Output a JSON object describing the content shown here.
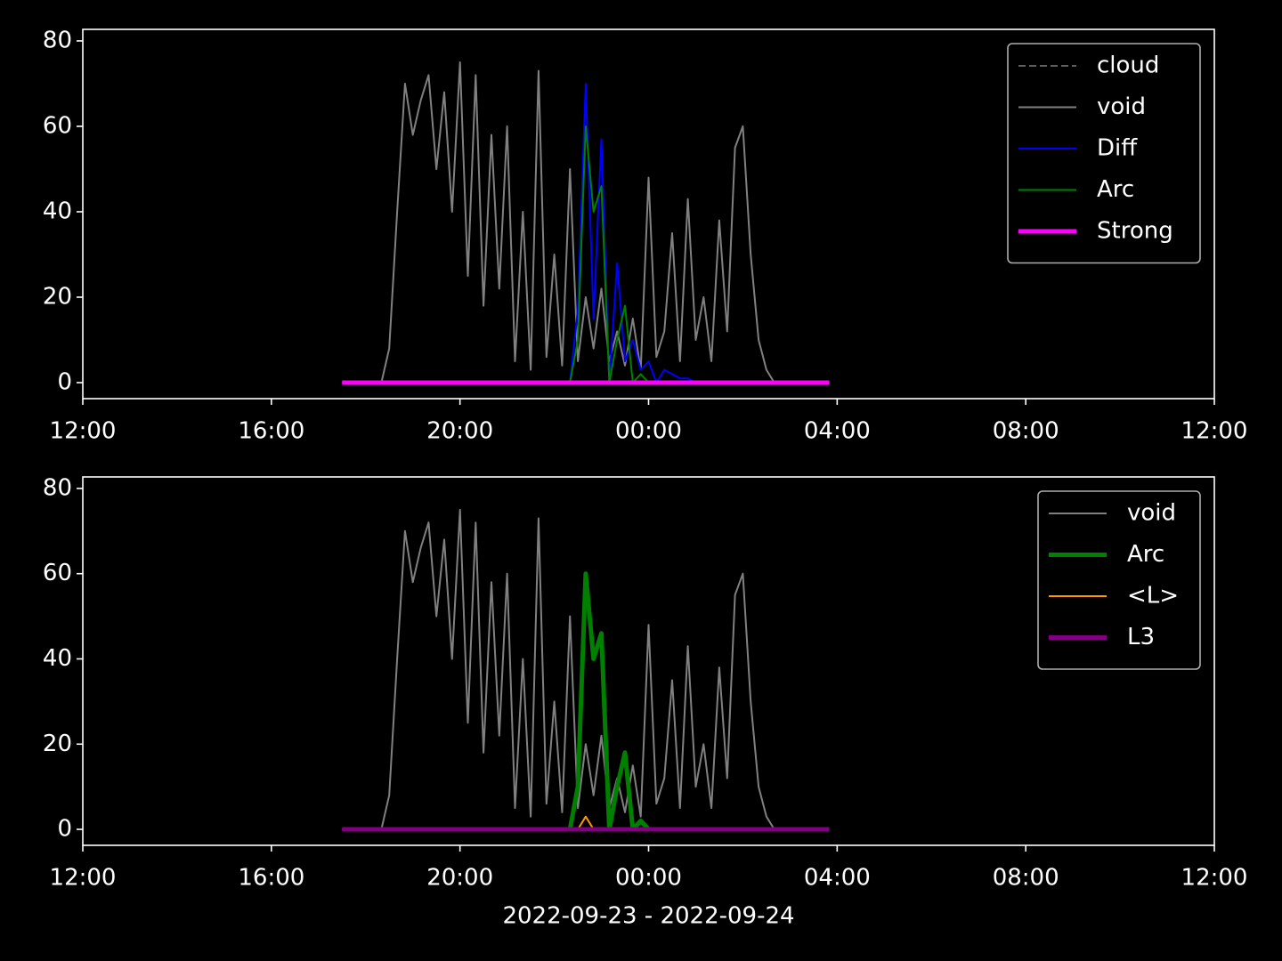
{
  "chart_data": [
    {
      "type": "line",
      "x": [
        "2022-09-23 17:30",
        "2022-09-23 17:40",
        "2022-09-23 17:50",
        "2022-09-23 18:00",
        "2022-09-23 18:10",
        "2022-09-23 18:20",
        "2022-09-23 18:30",
        "2022-09-23 18:40",
        "2022-09-23 18:50",
        "2022-09-23 19:00",
        "2022-09-23 19:10",
        "2022-09-23 19:20",
        "2022-09-23 19:30",
        "2022-09-23 19:40",
        "2022-09-23 19:50",
        "2022-09-23 20:00",
        "2022-09-23 20:10",
        "2022-09-23 20:20",
        "2022-09-23 20:30",
        "2022-09-23 20:40",
        "2022-09-23 20:50",
        "2022-09-23 21:00",
        "2022-09-23 21:10",
        "2022-09-23 21:20",
        "2022-09-23 21:30",
        "2022-09-23 21:40",
        "2022-09-23 21:50",
        "2022-09-23 22:00",
        "2022-09-23 22:10",
        "2022-09-23 22:20",
        "2022-09-23 22:30",
        "2022-09-23 22:40",
        "2022-09-23 22:50",
        "2022-09-23 23:00",
        "2022-09-23 23:10",
        "2022-09-23 23:20",
        "2022-09-23 23:30",
        "2022-09-23 23:40",
        "2022-09-23 23:50",
        "2022-09-24 00:00",
        "2022-09-24 00:10",
        "2022-09-24 00:20",
        "2022-09-24 00:30",
        "2022-09-24 00:40",
        "2022-09-24 00:50",
        "2022-09-24 01:00",
        "2022-09-24 01:10",
        "2022-09-24 01:20",
        "2022-09-24 01:30",
        "2022-09-24 01:40",
        "2022-09-24 01:50",
        "2022-09-24 02:00",
        "2022-09-24 02:10",
        "2022-09-24 02:20",
        "2022-09-24 02:30",
        "2022-09-24 02:40",
        "2022-09-24 02:50",
        "2022-09-24 03:00",
        "2022-09-24 03:10",
        "2022-09-24 03:20",
        "2022-09-24 03:30",
        "2022-09-24 03:40",
        "2022-09-24 03:50"
      ],
      "series": [
        {
          "name": "cloud",
          "color": "#808080",
          "linestyle": "dashed",
          "linewidth": 1.5,
          "values": [
            null,
            null,
            null,
            null,
            null,
            null,
            null,
            null,
            null,
            null,
            null,
            null,
            null,
            null,
            null,
            null,
            null,
            null,
            null,
            null,
            null,
            null,
            null,
            null,
            null,
            null,
            null,
            null,
            null,
            null,
            null,
            null,
            null,
            null,
            null,
            null,
            null,
            null,
            null,
            null,
            null,
            null,
            null,
            null,
            null,
            null,
            null,
            null,
            null,
            null,
            null,
            null,
            null,
            null,
            null,
            null,
            null,
            null,
            null,
            null,
            null,
            null,
            null
          ]
        },
        {
          "name": "void",
          "color": "#808080",
          "linestyle": "solid",
          "linewidth": 2,
          "values": [
            0,
            0,
            0,
            0,
            0,
            0,
            8,
            40,
            70,
            58,
            66,
            72,
            50,
            68,
            40,
            75,
            25,
            72,
            18,
            58,
            22,
            60,
            5,
            40,
            3,
            73,
            6,
            30,
            4,
            50,
            5,
            20,
            8,
            22,
            5,
            12,
            4,
            15,
            3,
            48,
            6,
            12,
            35,
            5,
            43,
            10,
            20,
            5,
            38,
            12,
            55,
            60,
            30,
            10,
            3,
            0,
            0,
            0,
            0,
            0,
            0,
            0,
            0
          ]
        },
        {
          "name": "Diff",
          "color": "#0000ff",
          "linestyle": "solid",
          "linewidth": 2,
          "values": [
            null,
            null,
            null,
            null,
            null,
            null,
            null,
            null,
            null,
            null,
            null,
            null,
            null,
            null,
            null,
            null,
            null,
            null,
            null,
            null,
            null,
            null,
            null,
            null,
            null,
            null,
            null,
            null,
            null,
            0,
            17,
            70,
            15,
            57,
            0,
            28,
            5,
            10,
            3,
            5,
            0,
            3,
            2,
            1,
            1,
            0,
            null,
            null,
            null,
            null,
            null,
            null,
            null,
            null,
            null,
            null,
            null,
            null,
            null,
            null,
            null,
            null,
            null
          ]
        },
        {
          "name": "Arc",
          "color": "#008000",
          "linestyle": "solid",
          "linewidth": 2,
          "values": [
            null,
            null,
            null,
            null,
            null,
            null,
            null,
            null,
            null,
            null,
            null,
            null,
            null,
            null,
            null,
            null,
            null,
            null,
            null,
            null,
            null,
            null,
            null,
            null,
            null,
            null,
            null,
            null,
            null,
            0,
            10,
            60,
            40,
            46,
            0,
            10,
            18,
            0,
            2,
            0,
            null,
            null,
            null,
            null,
            null,
            null,
            null,
            null,
            null,
            null,
            null,
            null,
            null,
            null,
            null,
            null,
            null,
            null,
            null,
            null,
            null,
            null,
            null
          ]
        },
        {
          "name": "Strong",
          "color": "#ff00ff",
          "linestyle": "solid",
          "linewidth": 5,
          "values": [
            0,
            0,
            0,
            0,
            0,
            0,
            0,
            0,
            0,
            0,
            0,
            0,
            0,
            0,
            0,
            0,
            0,
            0,
            0,
            0,
            0,
            0,
            0,
            0,
            0,
            0,
            0,
            0,
            0,
            0,
            0,
            0,
            0,
            0,
            0,
            0,
            0,
            0,
            0,
            0,
            0,
            0,
            0,
            0,
            0,
            0,
            0,
            0,
            0,
            0,
            0,
            0,
            0,
            0,
            0,
            0,
            0,
            0,
            0,
            0,
            0,
            0,
            0
          ]
        }
      ],
      "xlim": [
        "2022-09-23 12:00",
        "2022-09-24 12:00"
      ],
      "xticks": [
        {
          "value": "2022-09-23 12:00",
          "label": "12:00"
        },
        {
          "value": "2022-09-23 16:00",
          "label": "16:00"
        },
        {
          "value": "2022-09-23 20:00",
          "label": "20:00"
        },
        {
          "value": "2022-09-24 00:00",
          "label": "00:00"
        },
        {
          "value": "2022-09-24 04:00",
          "label": "04:00"
        },
        {
          "value": "2022-09-24 08:00",
          "label": "08:00"
        },
        {
          "value": "2022-09-24 12:00",
          "label": "12:00"
        }
      ],
      "ylim": [
        -3.75,
        82.7
      ],
      "yticks": [
        0,
        20,
        40,
        60,
        80
      ],
      "legend": "upper right"
    },
    {
      "type": "line",
      "x": [
        "2022-09-23 17:30",
        "2022-09-23 17:40",
        "2022-09-23 17:50",
        "2022-09-23 18:00",
        "2022-09-23 18:10",
        "2022-09-23 18:20",
        "2022-09-23 18:30",
        "2022-09-23 18:40",
        "2022-09-23 18:50",
        "2022-09-23 19:00",
        "2022-09-23 19:10",
        "2022-09-23 19:20",
        "2022-09-23 19:30",
        "2022-09-23 19:40",
        "2022-09-23 19:50",
        "2022-09-23 20:00",
        "2022-09-23 20:10",
        "2022-09-23 20:20",
        "2022-09-23 20:30",
        "2022-09-23 20:40",
        "2022-09-23 20:50",
        "2022-09-23 21:00",
        "2022-09-23 21:10",
        "2022-09-23 21:20",
        "2022-09-23 21:30",
        "2022-09-23 21:40",
        "2022-09-23 21:50",
        "2022-09-23 22:00",
        "2022-09-23 22:10",
        "2022-09-23 22:20",
        "2022-09-23 22:30",
        "2022-09-23 22:40",
        "2022-09-23 22:50",
        "2022-09-23 23:00",
        "2022-09-23 23:10",
        "2022-09-23 23:20",
        "2022-09-23 23:30",
        "2022-09-23 23:40",
        "2022-09-23 23:50",
        "2022-09-24 00:00",
        "2022-09-24 00:10",
        "2022-09-24 00:20",
        "2022-09-24 00:30",
        "2022-09-24 00:40",
        "2022-09-24 00:50",
        "2022-09-24 01:00",
        "2022-09-24 01:10",
        "2022-09-24 01:20",
        "2022-09-24 01:30",
        "2022-09-24 01:40",
        "2022-09-24 01:50",
        "2022-09-24 02:00",
        "2022-09-24 02:10",
        "2022-09-24 02:20",
        "2022-09-24 02:30",
        "2022-09-24 02:40",
        "2022-09-24 02:50",
        "2022-09-24 03:00",
        "2022-09-24 03:10",
        "2022-09-24 03:20",
        "2022-09-24 03:30",
        "2022-09-24 03:40",
        "2022-09-24 03:50"
      ],
      "series": [
        {
          "name": "void",
          "color": "#808080",
          "linestyle": "solid",
          "linewidth": 2,
          "values": [
            0,
            0,
            0,
            0,
            0,
            0,
            8,
            40,
            70,
            58,
            66,
            72,
            50,
            68,
            40,
            75,
            25,
            72,
            18,
            58,
            22,
            60,
            5,
            40,
            3,
            73,
            6,
            30,
            4,
            50,
            5,
            20,
            8,
            22,
            5,
            12,
            4,
            15,
            3,
            48,
            6,
            12,
            35,
            5,
            43,
            10,
            20,
            5,
            38,
            12,
            55,
            60,
            30,
            10,
            3,
            0,
            0,
            0,
            0,
            0,
            0,
            0,
            0
          ]
        },
        {
          "name": "Arc",
          "color": "#008000",
          "linestyle": "solid",
          "linewidth": 5,
          "values": [
            null,
            null,
            null,
            null,
            null,
            null,
            null,
            null,
            null,
            null,
            null,
            null,
            null,
            null,
            null,
            null,
            null,
            null,
            null,
            null,
            null,
            null,
            null,
            null,
            null,
            null,
            null,
            null,
            null,
            0,
            10,
            60,
            40,
            46,
            0,
            10,
            18,
            0,
            2,
            0,
            null,
            null,
            null,
            null,
            null,
            null,
            null,
            null,
            null,
            null,
            null,
            null,
            null,
            null,
            null,
            null,
            null,
            null,
            null,
            null,
            null,
            null,
            null
          ]
        },
        {
          "name": "<L>",
          "color": "#ff9900",
          "linestyle": "solid",
          "linewidth": 2,
          "values": [
            null,
            null,
            null,
            null,
            null,
            null,
            null,
            null,
            null,
            null,
            null,
            null,
            null,
            null,
            null,
            null,
            null,
            null,
            null,
            null,
            null,
            null,
            null,
            null,
            null,
            null,
            null,
            null,
            null,
            0,
            0,
            3,
            0,
            0,
            null,
            null,
            null,
            null,
            null,
            null,
            null,
            null,
            null,
            null,
            null,
            null,
            null,
            null,
            null,
            null,
            null,
            null,
            null,
            null,
            null,
            null,
            null,
            null,
            null,
            null,
            null,
            null,
            null
          ]
        },
        {
          "name": "L3",
          "color": "#800080",
          "linestyle": "solid",
          "linewidth": 5,
          "values": [
            0,
            0,
            0,
            0,
            0,
            0,
            0,
            0,
            0,
            0,
            0,
            0,
            0,
            0,
            0,
            0,
            0,
            0,
            0,
            0,
            0,
            0,
            0,
            0,
            0,
            0,
            0,
            0,
            0,
            0,
            0,
            0,
            0,
            0,
            0,
            0,
            0,
            0,
            0,
            0,
            0,
            0,
            0,
            0,
            0,
            0,
            0,
            0,
            0,
            0,
            0,
            0,
            0,
            0,
            0,
            0,
            0,
            0,
            0,
            0,
            0,
            0,
            0
          ]
        }
      ],
      "xlim": [
        "2022-09-23 12:00",
        "2022-09-24 12:00"
      ],
      "xticks": [
        {
          "value": "2022-09-23 12:00",
          "label": "12:00"
        },
        {
          "value": "2022-09-23 16:00",
          "label": "16:00"
        },
        {
          "value": "2022-09-23 20:00",
          "label": "20:00"
        },
        {
          "value": "2022-09-24 00:00",
          "label": "00:00"
        },
        {
          "value": "2022-09-24 04:00",
          "label": "04:00"
        },
        {
          "value": "2022-09-24 08:00",
          "label": "08:00"
        },
        {
          "value": "2022-09-24 12:00",
          "label": "12:00"
        }
      ],
      "ylim": [
        -3.75,
        82.7
      ],
      "yticks": [
        0,
        20,
        40,
        60,
        80
      ],
      "legend": "upper right",
      "xlabel": "2022-09-23 - 2022-09-24"
    }
  ]
}
